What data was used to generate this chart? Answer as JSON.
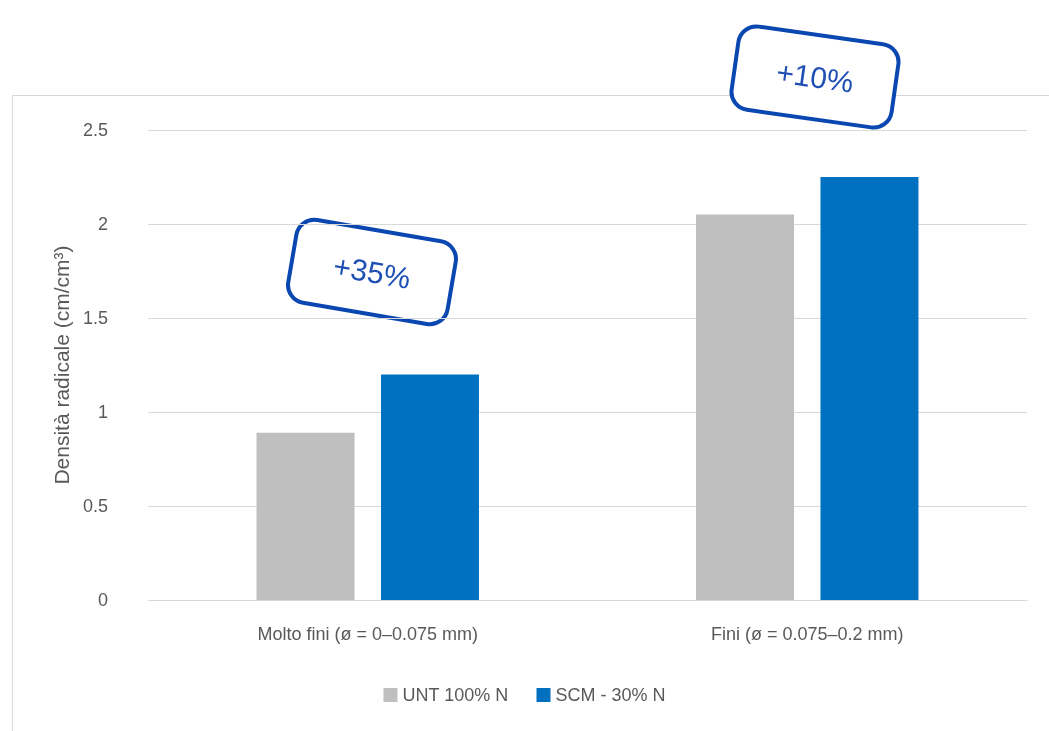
{
  "chart_data": {
    "type": "bar",
    "ylabel": "Densità radicale (cm/cm³)",
    "categories": [
      "Molto fini (ø = 0–0.075 mm)",
      "Fini (ø = 0.075–0.2 mm)"
    ],
    "series": [
      {
        "name": "UNT 100% N",
        "color": "#bfbfbf",
        "values": [
          0.89,
          2.05
        ]
      },
      {
        "name": "SCM - 30% N",
        "color": "#0070c0",
        "values": [
          1.2,
          2.25
        ]
      }
    ],
    "ylim": [
      0,
      2.5
    ],
    "yticks": [
      0,
      0.5,
      1,
      1.5,
      2,
      2.5
    ],
    "grid": "y",
    "legend": "bottom",
    "annotations": [
      "+35%",
      "+10%"
    ]
  }
}
